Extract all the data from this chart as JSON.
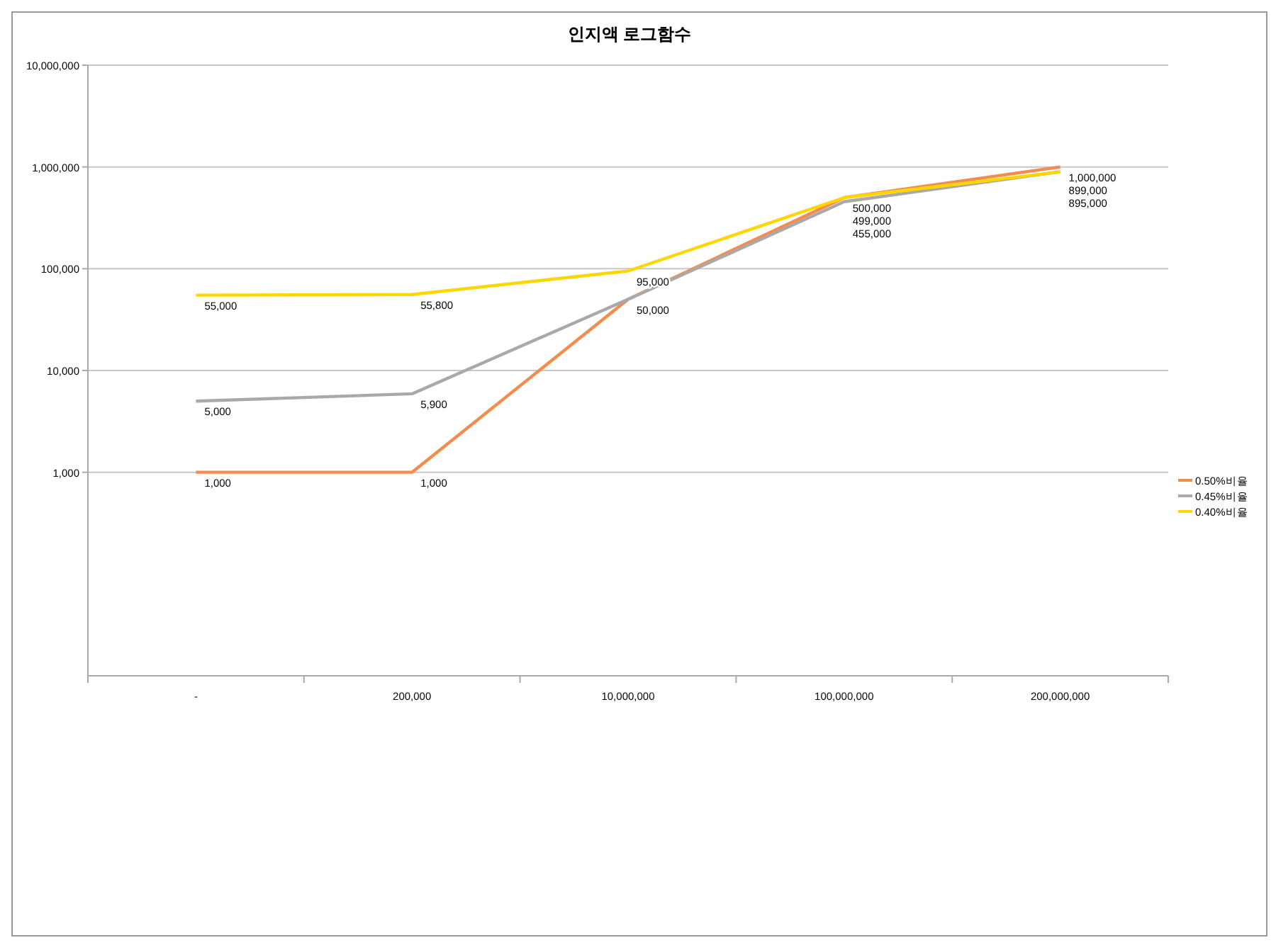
{
  "chart_data": {
    "type": "line",
    "title": "인지액 로그함수",
    "categories": [
      "-",
      "200,000",
      "10,000,000",
      "100,000,000",
      "200,000,000"
    ],
    "series": [
      {
        "name": "0.50%비율",
        "color": "#f58b4c",
        "values": [
          1000,
          1000,
          50000,
          500000,
          1000000
        ],
        "value_labels": [
          "1,000",
          "1,000",
          "50,000",
          "500,000",
          "1,000,000"
        ]
      },
      {
        "name": "0.45%비율",
        "color": "#a9a9a9",
        "values": [
          5000,
          5900,
          50000,
          455000,
          899000
        ],
        "value_labels": [
          "5,000",
          "5,900",
          null,
          "455,000",
          "899,000"
        ]
      },
      {
        "name": "0.40%비율",
        "color": "#ffd700",
        "values": [
          55000,
          55800,
          95000,
          499000,
          895000
        ],
        "value_labels": [
          "55,000",
          "55,800",
          "95,000",
          "499,000",
          "895,000"
        ]
      }
    ],
    "log": true,
    "ylim": [
      10,
      10000000
    ],
    "yticks": [
      {
        "value": 1000,
        "label": "1,000"
      },
      {
        "value": 10000,
        "label": "10,000"
      },
      {
        "value": 100000,
        "label": "100,000"
      },
      {
        "value": 1000000,
        "label": "1,000,000"
      },
      {
        "value": 10000000,
        "label": "10,000,000"
      }
    ],
    "grid": "y",
    "legend": "right",
    "marker": "none",
    "line_style": "solid"
  }
}
